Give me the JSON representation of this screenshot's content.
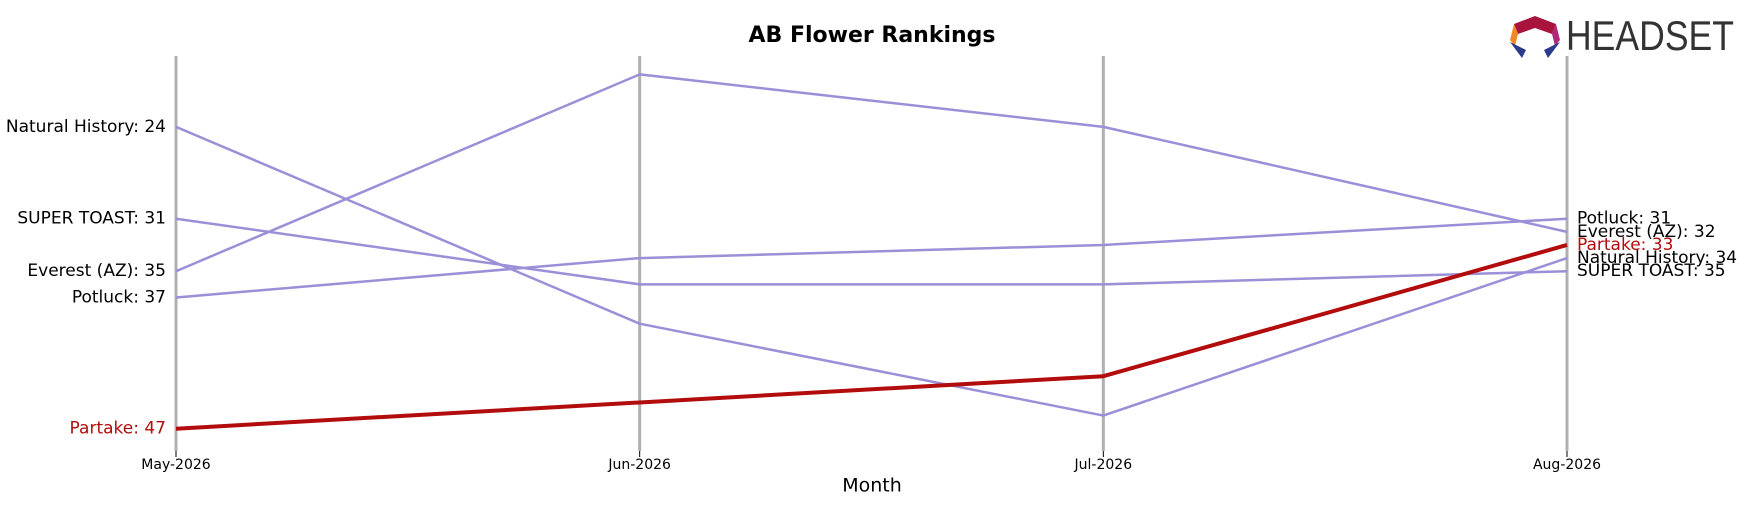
{
  "chart_data": {
    "type": "line",
    "title": "AB Flower Rankings",
    "xlabel": "Month",
    "logo": "HEADSET",
    "categories": [
      "May-2026",
      "Jun-2026",
      "Jul-2026",
      "Aug-2026"
    ],
    "ylim": [
      48.7,
      18.6
    ],
    "inverted": true,
    "series": [
      {
        "name": "Natural History",
        "color": "#9b8fd8",
        "highlight": false,
        "values": [
          24,
          39,
          46,
          34
        ],
        "value_labels": [
          "Natural History: 24",
          null,
          null,
          "Natural History: 34"
        ]
      },
      {
        "name": "SUPER TOAST",
        "color": "#9b8fd8",
        "highlight": false,
        "values": [
          31,
          36,
          36,
          35
        ],
        "value_labels": [
          "SUPER TOAST: 31",
          null,
          null,
          "SUPER TOAST: 35"
        ]
      },
      {
        "name": "Everest (AZ)",
        "color": "#9b8fd8",
        "highlight": false,
        "values": [
          35,
          20,
          24,
          32
        ],
        "value_labels": [
          "Everest (AZ): 35",
          null,
          null,
          "Everest (AZ): 32"
        ]
      },
      {
        "name": "Potluck",
        "color": "#9b8fd8",
        "highlight": false,
        "values": [
          37,
          34,
          33,
          31
        ],
        "value_labels": [
          "Potluck: 37",
          null,
          null,
          "Potluck: 31"
        ]
      },
      {
        "name": "Partake",
        "color": "#b30c0c",
        "highlight": true,
        "values": [
          47,
          45,
          43,
          33
        ],
        "value_labels": [
          "Partake: 47",
          null,
          null,
          "Partake: 33"
        ]
      }
    ]
  }
}
